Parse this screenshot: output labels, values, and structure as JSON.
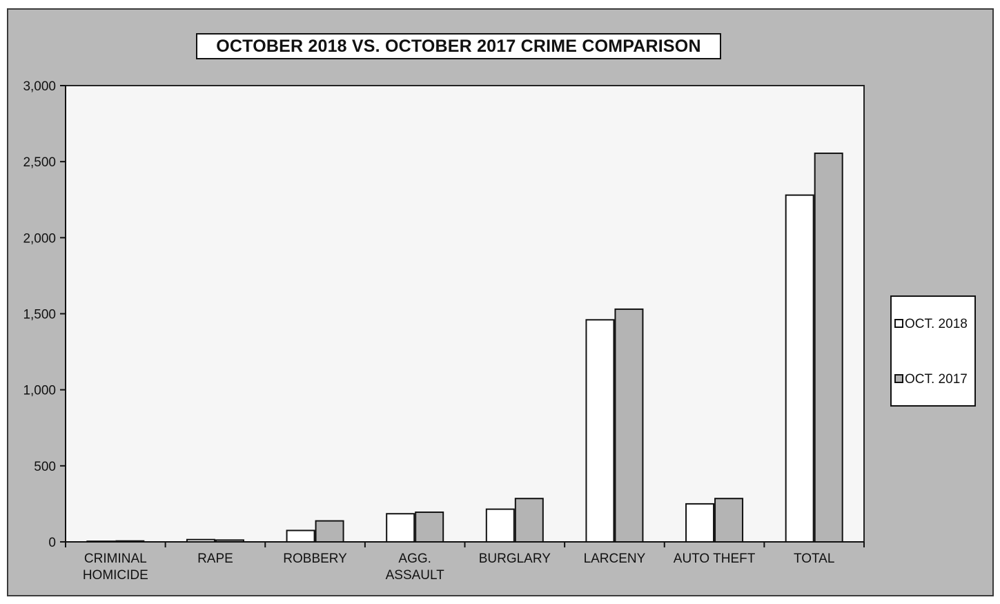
{
  "chart_data": {
    "type": "bar",
    "title": "OCTOBER 2018 VS. OCTOBER 2017 CRIME COMPARISON",
    "xlabel": "",
    "ylabel": "",
    "ylim": [
      0,
      3000
    ],
    "yticks": [
      0,
      500,
      1000,
      1500,
      2000,
      2500,
      3000
    ],
    "ytick_labels": [
      "0",
      "500",
      "1,000",
      "1,500",
      "2,000",
      "2,500",
      "3,000"
    ],
    "categories": [
      [
        "CRIMINAL",
        "HOMICIDE"
      ],
      [
        "RAPE"
      ],
      [
        "ROBBERY"
      ],
      [
        "AGG.",
        "ASSAULT"
      ],
      [
        "BURGLARY"
      ],
      [
        "LARCENY"
      ],
      [
        "AUTO THEFT"
      ],
      [
        "TOTAL"
      ]
    ],
    "series": [
      {
        "name": "OCT. 2018",
        "color": "#ffffff",
        "values": [
          4,
          15,
          75,
          185,
          215,
          1460,
          250,
          2280
        ]
      },
      {
        "name": "OCT. 2017",
        "color": "#b4b4b4",
        "values": [
          6,
          12,
          138,
          195,
          285,
          1530,
          285,
          2555
        ]
      }
    ],
    "grid": false,
    "legend_position": "right"
  }
}
